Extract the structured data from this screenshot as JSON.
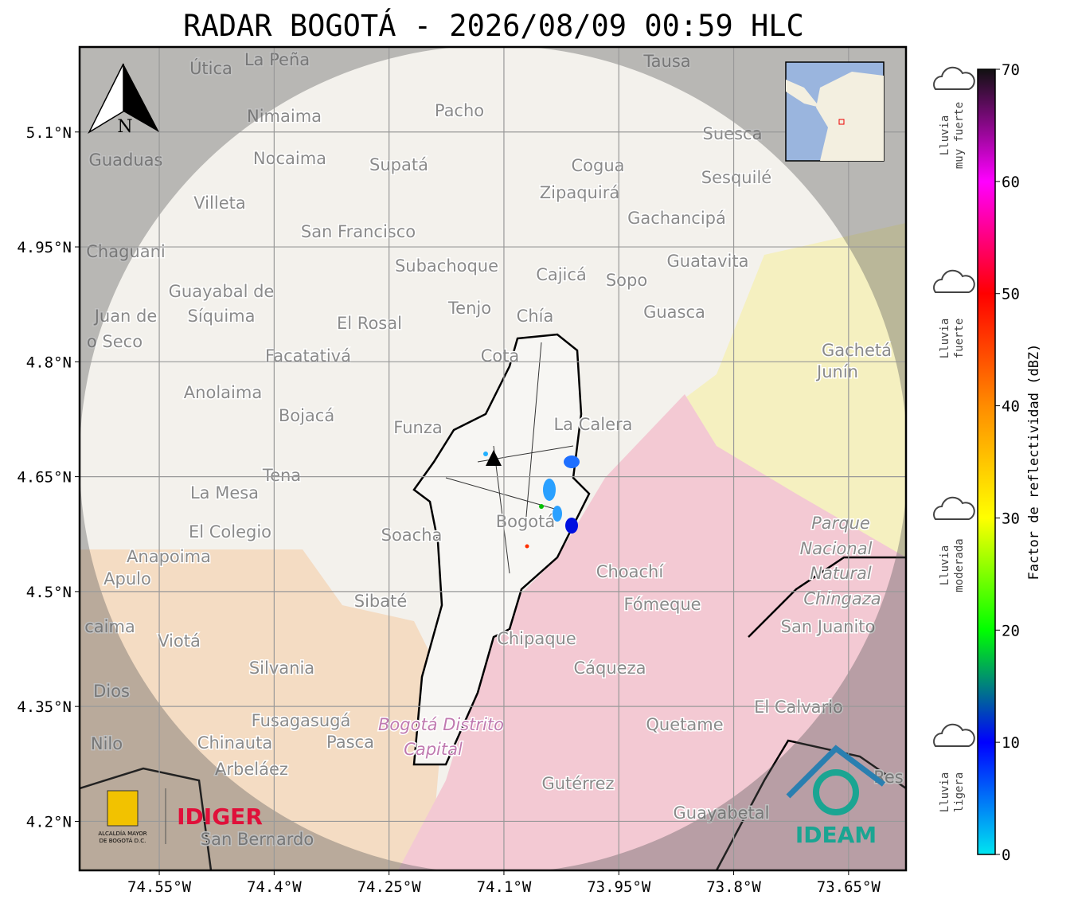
{
  "title": "RADAR BOGOTÁ - 2026/08/09 00:59 HLC",
  "map": {
    "lonlim": [
      -74.654,
      -73.575
    ],
    "latlim": [
      4.136,
      5.211
    ],
    "lon_ticks": [
      {
        "value": -74.55,
        "label": "74.55°W"
      },
      {
        "value": -74.4,
        "label": "74.4°W"
      },
      {
        "value": -74.25,
        "label": "74.25°W"
      },
      {
        "value": -74.1,
        "label": "74.1°W"
      },
      {
        "value": -73.95,
        "label": "73.95°W"
      },
      {
        "value": -73.8,
        "label": "73.8°W"
      },
      {
        "value": -73.65,
        "label": "73.65°W"
      }
    ],
    "lat_ticks": [
      {
        "value": 5.1,
        "label": "5.1°N"
      },
      {
        "value": 4.95,
        "label": "4.95°N"
      },
      {
        "value": 4.8,
        "label": "4.8°N"
      },
      {
        "value": 4.65,
        "label": "4.65°N"
      },
      {
        "value": 4.5,
        "label": "4.5°N"
      },
      {
        "value": 4.35,
        "label": "4.35°N"
      },
      {
        "value": 4.2,
        "label": "4.2°N"
      }
    ],
    "north": "N",
    "places": [
      "La Peña",
      "Útica",
      "Tausa",
      "Pacho",
      "Nimaima",
      "Guaduas",
      "Nocaima",
      "Supatá",
      "Cogua",
      "Suesca",
      "Sesquilé",
      "Zipaquirá",
      "Villeta",
      "Gachancipá",
      "San Francisco",
      "Chaguani",
      "Guatavita",
      "Subachoque",
      "Cajicá",
      "Sopo",
      "Guayabal de",
      "Síquima",
      "Juan de",
      "o Seco",
      "Tenjo",
      "Chía",
      "Guasca",
      "El Rosal",
      "Facatativá",
      "Cota",
      "Gachetá",
      "Junín",
      "Anolaima",
      "Bojacá",
      "Funza",
      "La Calera",
      "Tena",
      "La Mesa",
      "El Colegio",
      "Soacha",
      "Bogotá",
      "Anapoima",
      "Apulo",
      "Choachí",
      "Fómeque",
      "Sibaté",
      "San Juanito",
      "caima",
      "Viotá",
      "Chipaque",
      "Silvania",
      "Cáqueza",
      "Dios",
      "El Calvario",
      "Fusagasugá",
      "Quetame",
      "Nilo",
      "Chinauta",
      "Pasca",
      "Arbeláez",
      "Gutérrez",
      "Guayabetal",
      "San Bernardo",
      "Res"
    ],
    "park": [
      "Parque",
      "Nacional",
      "Natural",
      "Chingaza"
    ],
    "district": [
      "Bogotá Distrito",
      "Capital"
    ]
  },
  "colorbar": {
    "label": "Factor de reflectividad (dBZ)",
    "range": [
      0,
      70
    ],
    "ticks": [
      0,
      10,
      20,
      30,
      40,
      50,
      60,
      70
    ],
    "colors": [
      "#00e5f0",
      "#0000ff",
      "#00ff00",
      "#ffff00",
      "#ff8c00",
      "#ff0000",
      "#ff00ff",
      "#111111"
    ]
  },
  "rain_levels": [
    {
      "lines": [
        "Lluvia",
        "muy fuerte"
      ]
    },
    {
      "lines": [
        "Lluvia",
        "fuerte"
      ]
    },
    {
      "lines": [
        "Lluvia",
        "moderada"
      ]
    },
    {
      "lines": [
        "Lluvia",
        "ligera"
      ]
    }
  ],
  "logos": {
    "alcaldia": [
      "ALCALDÍA MAYOR",
      "DE BOGOTÁ D.C."
    ],
    "idiger": "IDIGER",
    "ideam": "IDEAM"
  }
}
